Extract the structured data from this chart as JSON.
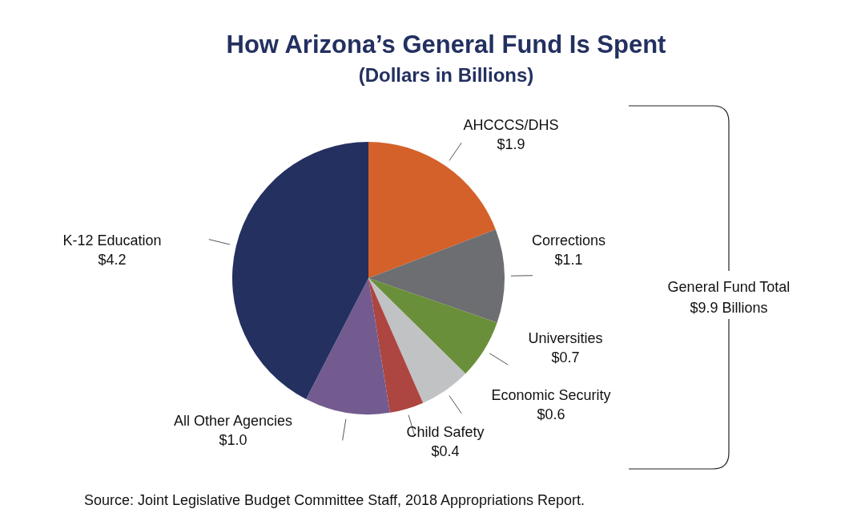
{
  "chart_data": {
    "type": "pie",
    "title": "How Arizona’s General Fund Is Spent",
    "subtitle": "(Dollars in Billions)",
    "categories": [
      "AHCCCS/DHS",
      "Corrections",
      "Universities",
      "Economic Security",
      "Child Safety",
      "All Other Agencies",
      "K-12 Education"
    ],
    "values": [
      1.9,
      1.1,
      0.7,
      0.6,
      0.4,
      1.0,
      4.2
    ],
    "colors": [
      "#d4612a",
      "#6d6e71",
      "#6a8f3a",
      "#c0c2c4",
      "#ad4540",
      "#735b8f",
      "#233060"
    ],
    "value_labels": [
      "$1.9",
      "$1.1",
      "$0.7",
      "$0.6",
      "$0.4",
      "$1.0",
      "$4.2"
    ],
    "annotations": [
      "General Fund Total\n$9.9 Billions",
      "Source: Joint Legislative Budget Committee Staff, 2018 Appropriations Report."
    ]
  }
}
